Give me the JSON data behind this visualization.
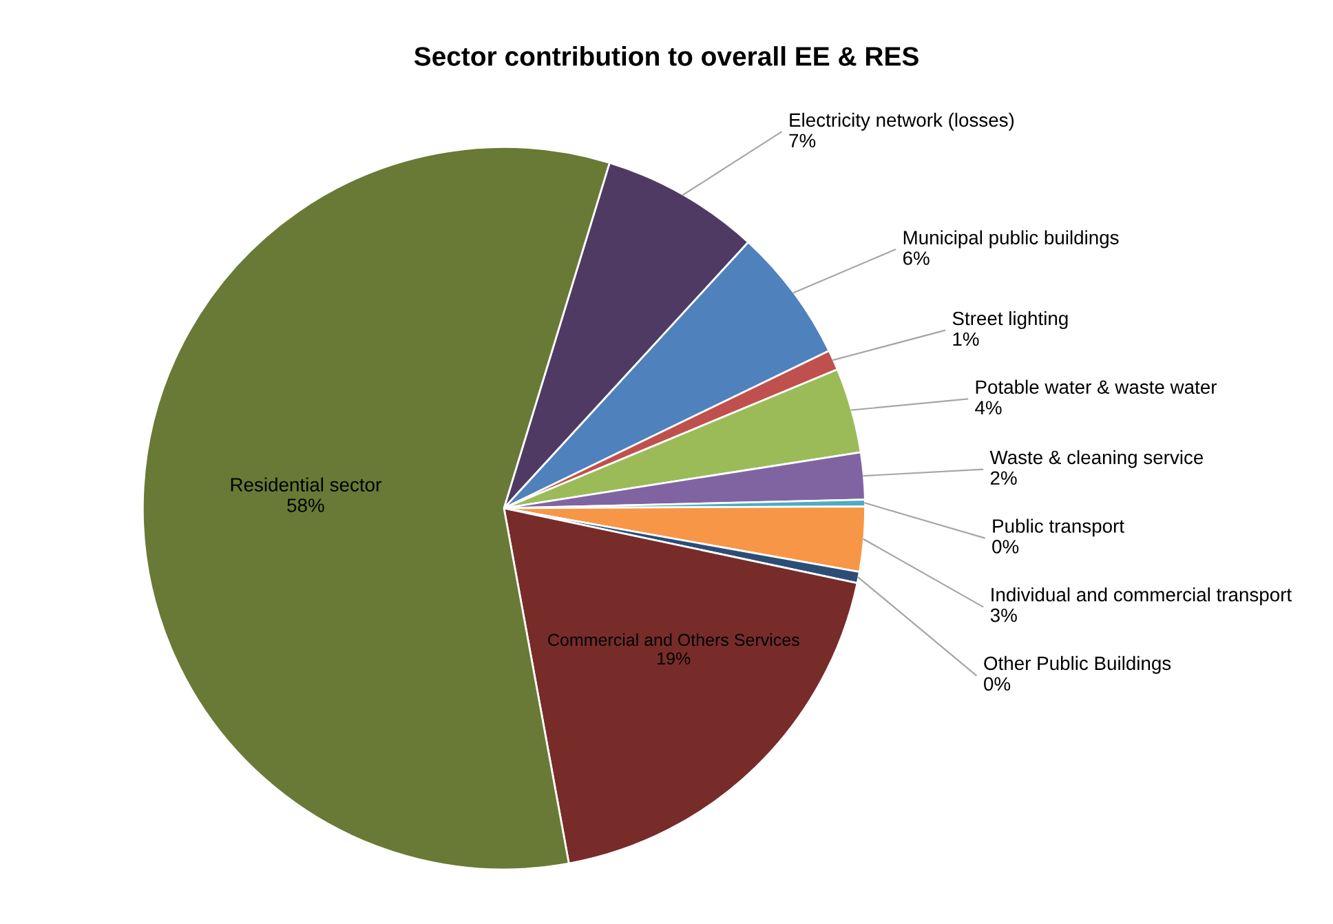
{
  "chart_data": {
    "type": "pie",
    "title": "Sector contribution to overall EE & RES",
    "categories": [
      "Electricity network (losses)",
      "Municipal public buildings",
      "Street lighting",
      "Potable water & waste water",
      "Waste & cleaning service",
      "Public transport",
      "Individual and commercial transport",
      "Other Public Buildings",
      "Commercial and Others Services",
      "Residential sector"
    ],
    "values": [
      7.1,
      6.0,
      0.9,
      3.8,
      2.1,
      0.3,
      2.9,
      0.5,
      18.8,
      57.6
    ],
    "value_labels": [
      "7%",
      "6%",
      "1%",
      "4%",
      "2%",
      "0%",
      "3%",
      "0%",
      "19%",
      "58%"
    ],
    "colors": [
      "#4f3a64",
      "#4f81bd",
      "#c0504d",
      "#9bbb59",
      "#8064a2",
      "#4bacc6",
      "#f79646",
      "#2c4d75",
      "#772c2a",
      "#687a35"
    ],
    "legend": false
  }
}
